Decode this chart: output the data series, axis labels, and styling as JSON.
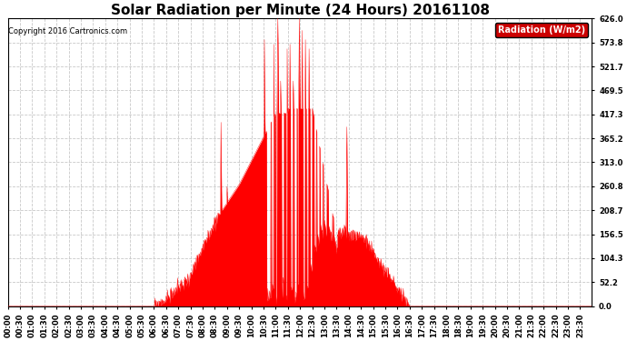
{
  "title": "Solar Radiation per Minute (24 Hours) 20161108",
  "copyright_text": "Copyright 2016 Cartronics.com",
  "legend_label": "Radiation (W/m2)",
  "yticks": [
    0.0,
    52.2,
    104.3,
    156.5,
    208.7,
    260.8,
    313.0,
    365.2,
    417.3,
    469.5,
    521.7,
    573.8,
    626.0
  ],
  "ymax": 626.0,
  "ymin": 0.0,
  "fill_color": "#FF0000",
  "line_color": "#FF0000",
  "grid_color": "#BBBBBB",
  "background_color": "#FFFFFF",
  "title_fontsize": 11,
  "tick_fontsize": 6,
  "legend_bg": "#CC0000",
  "legend_text_color": "#FFFFFF",
  "sunrise_min": 360,
  "sunset_min": 990
}
